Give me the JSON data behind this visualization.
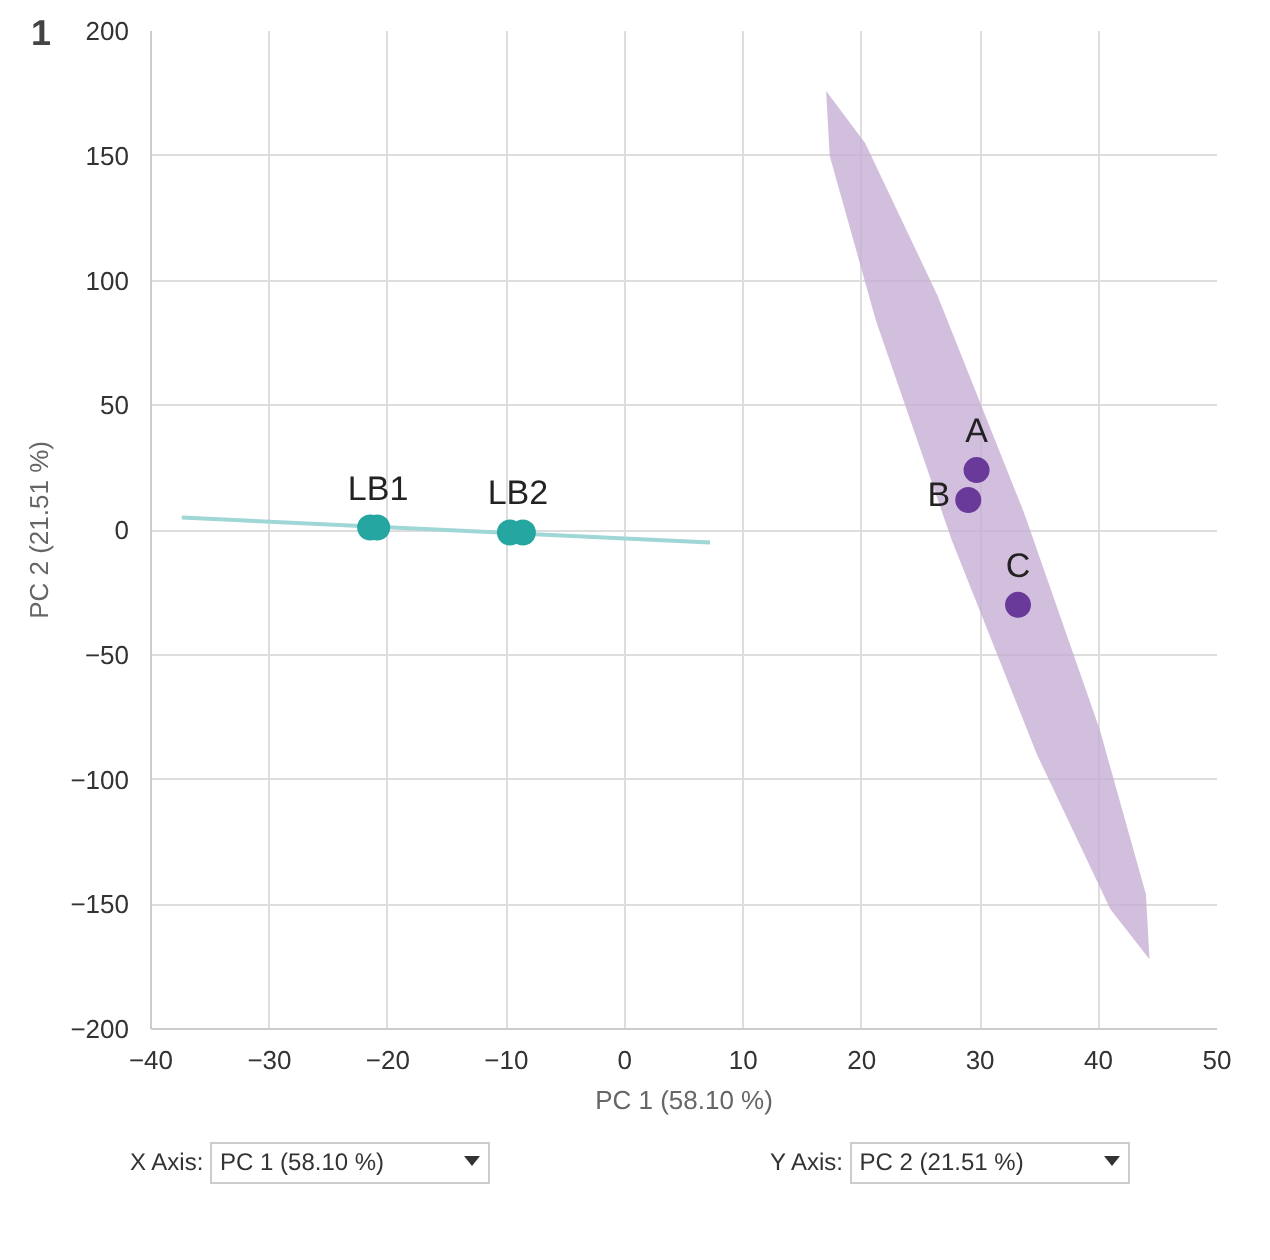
{
  "chart_data": {
    "type": "scatter",
    "xlabel": "PC 1 (58.10 %)",
    "ylabel": "PC 2 (21.51 %)",
    "xlim": [
      -40,
      50
    ],
    "ylim": [
      -200,
      200
    ],
    "xticks": [
      -40,
      -30,
      -20,
      -10,
      0,
      10,
      20,
      30,
      40,
      50
    ],
    "yticks": [
      -200,
      -150,
      -100,
      -50,
      0,
      50,
      100,
      150,
      200
    ],
    "grid": true,
    "annotations": [
      "1",
      "X Axis: PC 1 (58.10 %)",
      "Y Axis: PC 2 (21.51 %)"
    ],
    "series": [
      {
        "type": "area",
        "color": "#c7afd6",
        "x": [
          44.3,
          44.0,
          40.1,
          33.7,
          26.4,
          20.3,
          17.0,
          17.3,
          21.2,
          27.6,
          34.8,
          41.0
        ],
        "values": [
          -172,
          -146,
          -80,
          7,
          94,
          155,
          176,
          150,
          84,
          -4,
          -90,
          -152
        ]
      },
      {
        "type": "line",
        "color": "#9fd6d6",
        "x": [
          -37.4,
          7.2
        ],
        "values": [
          5,
          -5
        ]
      },
      {
        "name": "LB1",
        "color": "#26a6a0",
        "x": [
          -21.5,
          -20.9
        ],
        "values": [
          1,
          1
        ]
      },
      {
        "name": "LB2",
        "color": "#26a6a0",
        "x": [
          -9.7,
          -8.6
        ],
        "values": [
          -1,
          -1
        ]
      },
      {
        "name": "A",
        "color": "#6a3a9a",
        "x": [
          29.7
        ],
        "values": [
          24
        ]
      },
      {
        "name": "B",
        "color": "#6a3a9a",
        "x": [
          29.0
        ],
        "values": [
          12
        ]
      },
      {
        "name": "C",
        "color": "#6a3a9a",
        "x": [
          33.2
        ],
        "values": [
          -30
        ]
      }
    ]
  }
}
